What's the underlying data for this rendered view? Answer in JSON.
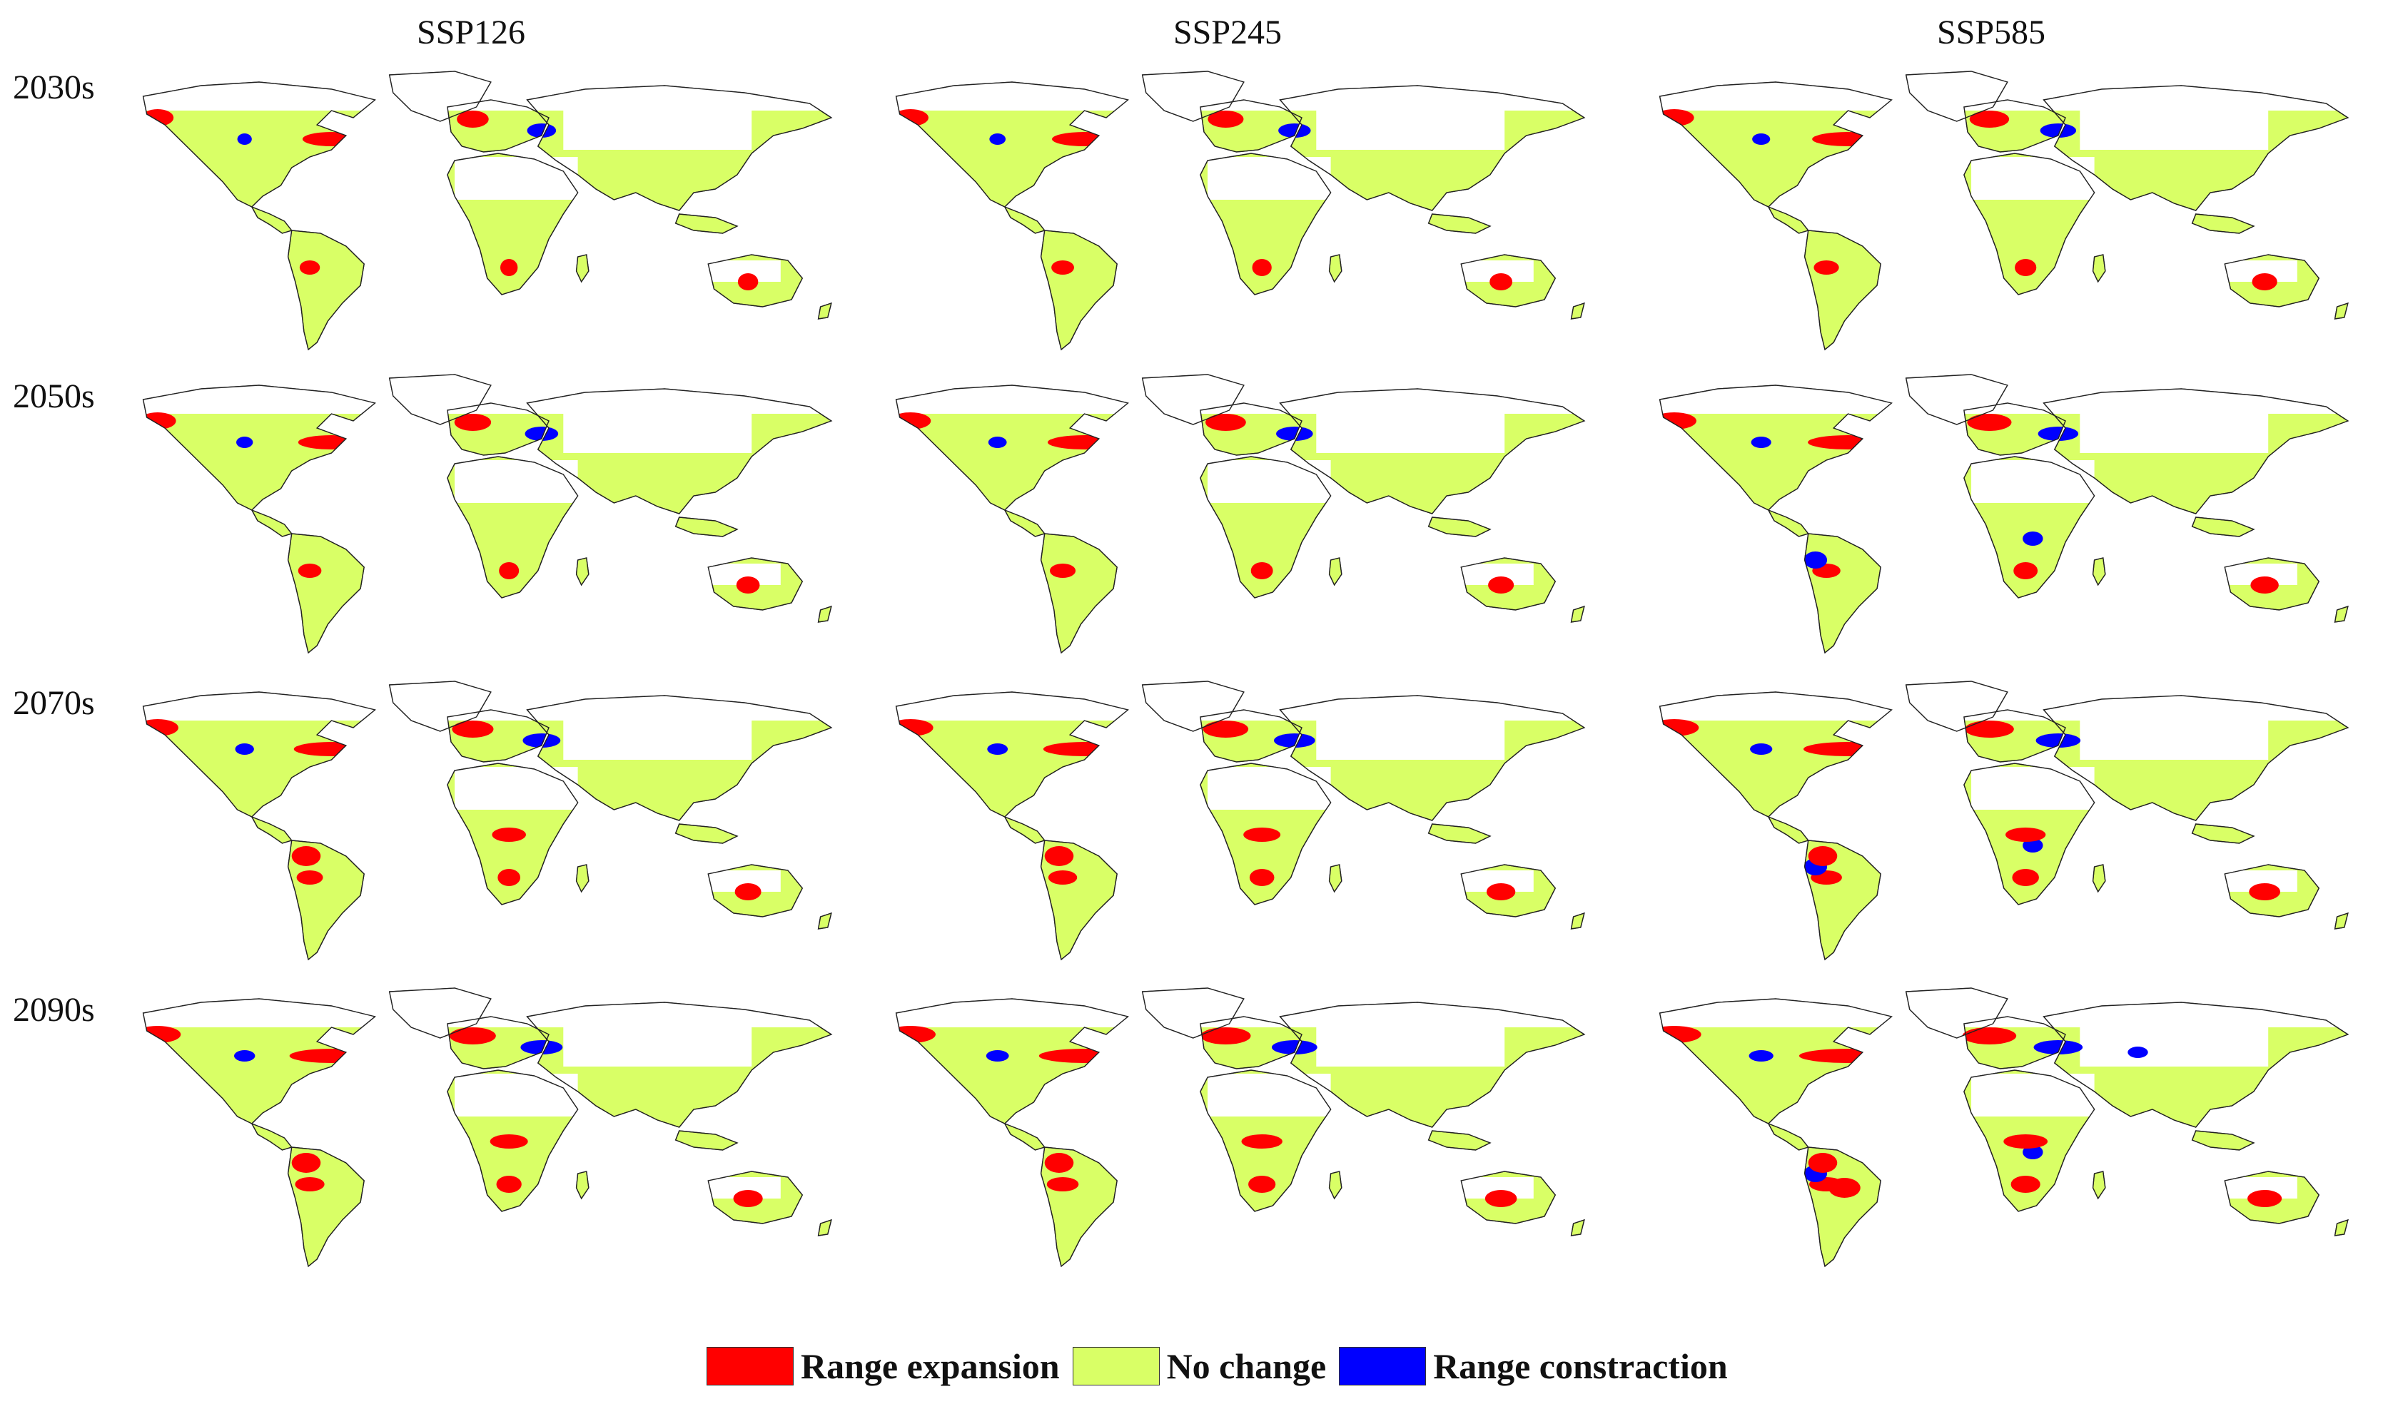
{
  "scenarios": [
    "SSP126",
    "SSP245",
    "SSP585"
  ],
  "periods": [
    "2030s",
    "2050s",
    "2070s",
    "2090s"
  ],
  "colors": {
    "expansion": "#ff0000",
    "no_change": "#d9ff66",
    "contraction": "#0000ff",
    "outline": "#222222"
  },
  "legend": [
    {
      "label": "Range expansion",
      "color": "#ff0000"
    },
    {
      "label": "No change",
      "color": "#d9ff66"
    },
    {
      "label": "Range constraction",
      "color": "#0000ff"
    }
  ]
}
